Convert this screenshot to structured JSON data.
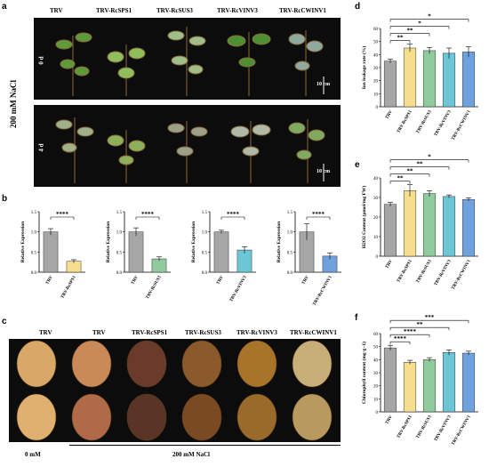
{
  "panel_labels": {
    "a": "a",
    "b": "b",
    "c": "c",
    "d": "d",
    "e": "e",
    "f": "f"
  },
  "panel_a": {
    "columns": [
      "TRV",
      "TRV-RcSPS1",
      "TRV-RcSUS3",
      "TRV-RcVINV3",
      "TRV-RcCWINV1"
    ],
    "treatment": "200 mM NaCl",
    "rows": [
      "0 d",
      "4 d"
    ],
    "scale": "10 cm"
  },
  "panel_c": {
    "columns": [
      "TRV",
      "TRV",
      "TRV-RcSPS1",
      "TRV-RcSUS3",
      "TRV-RcVINV3",
      "TRV-RcCWINV1"
    ],
    "bottom_left": "0 mM",
    "bottom_right": "200 mM NaCl"
  },
  "colors": {
    "trv": "#a6a6a6",
    "sps1": "#f5df8f",
    "sus3": "#8fcb9c",
    "vinv3": "#6cc6d6",
    "cwinv1": "#6fa1dc"
  },
  "chart_data": [
    {
      "panel": "b1",
      "type": "bar",
      "categories": [
        "TRV",
        "TRV-RcSPS1"
      ],
      "values": [
        1.0,
        0.27
      ],
      "errors": [
        0.08,
        0.04
      ],
      "ylabel": "Relative Expression",
      "ylim": [
        0,
        1.5
      ],
      "yticks": [
        "0.0",
        "0.5",
        "1.0",
        "1.5"
      ],
      "significance": "****"
    },
    {
      "panel": "b2",
      "type": "bar",
      "categories": [
        "TRV",
        "TRV-RcSUS3"
      ],
      "values": [
        1.0,
        0.33
      ],
      "errors": [
        0.1,
        0.05
      ],
      "ylabel": "Relative Expression",
      "ylim": [
        0,
        1.5
      ],
      "yticks": [
        "0.0",
        "0.5",
        "1.0",
        "1.5"
      ],
      "significance": "****"
    },
    {
      "panel": "b3",
      "type": "bar",
      "categories": [
        "TRV",
        "TRV-RcVINV3"
      ],
      "values": [
        1.0,
        0.55
      ],
      "errors": [
        0.04,
        0.08
      ],
      "ylabel": "Relative Expression",
      "ylim": [
        0,
        1.5
      ],
      "yticks": [
        "0.0",
        "0.5",
        "1.0",
        "1.5"
      ],
      "significance": "****"
    },
    {
      "panel": "b4",
      "type": "bar",
      "categories": [
        "TRV",
        "TRV-RcCWINV1"
      ],
      "values": [
        1.0,
        0.4
      ],
      "errors": [
        0.2,
        0.08
      ],
      "ylabel": "Relative Expression",
      "ylim": [
        0,
        1.5
      ],
      "yticks": [
        "0.0",
        "0.5",
        "1.0",
        "1.5"
      ],
      "significance": "****"
    },
    {
      "panel": "d",
      "type": "bar",
      "categories": [
        "TRV",
        "TRV-RcSPS1",
        "TRV-RcSUS3",
        "TRV-RcVINV3",
        "TRV-RcCWINV1"
      ],
      "values": [
        35,
        45,
        43,
        41,
        42
      ],
      "errors": [
        1.5,
        3,
        2.5,
        4,
        4
      ],
      "ylabel": "Ion leakage rate (%)",
      "ylim": [
        0,
        60
      ],
      "yticks": [
        "0",
        "10",
        "20",
        "30",
        "40",
        "50",
        "60"
      ],
      "significance": [
        "**",
        "**",
        "*",
        "*"
      ]
    },
    {
      "panel": "e",
      "type": "bar",
      "categories": [
        "TRV",
        "TRV-RcSPS1",
        "TRV-RcSUS3",
        "TRV-RcVINV3",
        "TRV-RcCWINV1"
      ],
      "values": [
        26.5,
        33.5,
        32,
        30.5,
        29
      ],
      "errors": [
        1,
        3,
        1.5,
        0.8,
        0.8
      ],
      "ylabel": "H2O2 Content (μmol/mg FW)",
      "ylim": [
        0,
        40
      ],
      "yticks": [
        "0",
        "10",
        "20",
        "30",
        "40"
      ],
      "significance": [
        "**",
        "**",
        "**",
        "*"
      ]
    },
    {
      "panel": "f",
      "type": "bar",
      "categories": [
        "TRV",
        "TRV-RcSPS1",
        "TRV-RcSUS3",
        "TRV-RcVINV3",
        "TRV-RcCWINV1"
      ],
      "values": [
        49,
        38,
        40,
        45.5,
        45
      ],
      "errors": [
        2,
        1.5,
        1.5,
        2,
        1.5
      ],
      "ylabel": "Chlorophyll content (mg·g−1)",
      "ylim": [
        0,
        60
      ],
      "yticks": [
        "0",
        "10",
        "20",
        "30",
        "40",
        "50",
        "60"
      ],
      "significance": [
        "****",
        "****",
        "**",
        "***"
      ]
    }
  ]
}
